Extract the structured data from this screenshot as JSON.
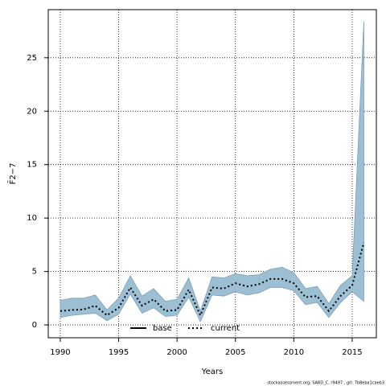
{
  "chart_data": {
    "type": "line",
    "xlabel": "Years",
    "ylabel": "F̄2−7",
    "footnote": "stockassessment.org, SARD_C, r9497 , git: 7b8eba1caeb3",
    "x": [
      1990,
      1991,
      1992,
      1993,
      1994,
      1995,
      1996,
      1997,
      1998,
      1999,
      2000,
      2001,
      2002,
      2003,
      2004,
      2005,
      2006,
      2007,
      2008,
      2009,
      2010,
      2011,
      2012,
      2013,
      2014,
      2015,
      2016
    ],
    "series": [
      {
        "name": "base",
        "color": "#000000",
        "values": [
          null,
          null,
          null,
          null,
          null,
          null,
          null,
          null,
          null,
          null,
          null,
          null,
          null,
          null,
          null,
          null,
          null,
          null,
          null,
          null,
          null,
          null,
          null,
          null,
          null,
          null,
          null
        ]
      },
      {
        "name": "current",
        "color": "#000000",
        "values": [
          1.3,
          1.4,
          1.45,
          1.8,
          0.9,
          1.6,
          3.5,
          1.8,
          2.4,
          1.3,
          1.4,
          3.3,
          0.9,
          3.5,
          3.4,
          3.9,
          3.6,
          3.8,
          4.3,
          4.3,
          3.9,
          2.6,
          2.7,
          1.3,
          2.7,
          3.7,
          7.7
        ]
      }
    ],
    "band": {
      "color": "#9dbfd3",
      "upper": [
        2.3,
        2.5,
        2.5,
        2.8,
        1.4,
        2.5,
        4.6,
        2.7,
        3.4,
        2.2,
        2.4,
        4.4,
        1.3,
        4.5,
        4.4,
        4.8,
        4.6,
        4.7,
        5.2,
        5.4,
        4.9,
        3.4,
        3.6,
        2.0,
        3.7,
        4.6,
        28.4
      ],
      "lower": [
        0.7,
        0.9,
        1.0,
        1.1,
        0.4,
        1.0,
        2.9,
        1.1,
        1.6,
        0.8,
        0.9,
        2.6,
        0.3,
        2.8,
        2.7,
        3.1,
        2.8,
        3.0,
        3.5,
        3.5,
        3.2,
        1.9,
        2.1,
        0.7,
        2.1,
        3.1,
        2.2
      ]
    },
    "xlim": [
      1988.97,
      2017.07
    ],
    "xticks": [
      1990,
      1995,
      2000,
      2005,
      2010,
      2015
    ],
    "ylim": [
      -1.2,
      29.5
    ],
    "yticks": [
      0,
      5,
      10,
      15,
      20,
      25
    ],
    "grid": true,
    "legend": "bottom"
  }
}
